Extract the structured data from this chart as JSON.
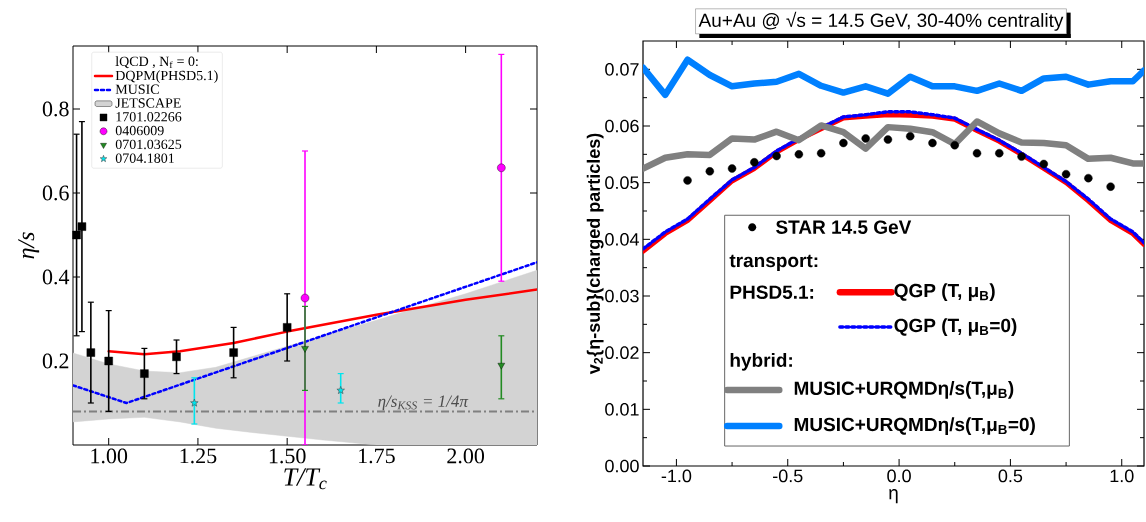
{
  "chart_data": [
    {
      "type": "line",
      "xlabel": "T/T$_{c}$",
      "ylabel": "η/s",
      "legend_title": "lQCD , N$_{f}$ = 0:",
      "legend": "top left",
      "xlim": [
        0.9,
        2.2
      ],
      "xticks": [
        {
          "value": 1.0,
          "label": "1.00"
        },
        1.25,
        {
          "value": 1.5,
          "label": "1.50"
        },
        1.75,
        {
          "value": 2.0,
          "label": "2.00"
        }
      ],
      "ylim": [
        0,
        0.95
      ],
      "yticks": [
        0.2,
        0.4,
        0.6,
        0.8
      ],
      "ref_lines": [
        {
          "axis": "y",
          "value": 0.0796,
          "color": "#808080"
        }
      ],
      "annotations": [
        {
          "text": "η/s$_{KSS}$ = 1/4π",
          "x": 1.88,
          "y": 0.0796
        }
      ],
      "series": [
        {
          "name": "DQPM(PHSD5.1)",
          "color": "#ff0000",
          "x": [
            1.0,
            1.1,
            1.2,
            1.35,
            1.5,
            1.75,
            2.0,
            2.2
          ],
          "values": [
            0.223,
            0.216,
            0.223,
            0.243,
            0.27,
            0.31,
            0.346,
            0.37
          ]
        },
        {
          "name": "MUSIC",
          "color": "#0000ff",
          "line_style": "dashed",
          "x": [
            0.9,
            1.05,
            1.5,
            2.2
          ],
          "values": [
            0.142,
            0.1,
            0.231,
            0.435
          ]
        },
        {
          "name": "JETSCAPE",
          "type": "area",
          "color": "#d3d3d3",
          "x": [
            0.9,
            1.0,
            1.1,
            1.2,
            1.3,
            1.4,
            1.6,
            1.75,
            1.8,
            2.0,
            2.2
          ],
          "values": [
            null,
            null,
            null,
            null,
            null,
            null,
            null,
            null,
            null,
            null,
            null
          ],
          "lower": [
            0.055,
            0.062,
            0.066,
            0.055,
            0.04,
            0.03,
            0.012,
            0.0,
            0.0,
            0.0,
            0.0
          ],
          "upper": [
            0.219,
            0.193,
            0.176,
            0.172,
            0.185,
            0.21,
            0.26,
            0.297,
            0.31,
            0.36,
            0.416
          ]
        },
        {
          "name": "1701.02266",
          "type": "scatter",
          "marker": "square",
          "color": "#000000",
          "x": [
            0.91,
            0.925,
            0.95,
            1.0,
            1.1,
            1.19,
            1.35,
            1.5
          ],
          "values": [
            0.5,
            0.52,
            0.22,
            0.2,
            0.17,
            0.21,
            0.22,
            0.28
          ],
          "errors": [
            [
              0.26,
              0.74
            ],
            [
              0.27,
              0.77
            ],
            [
              0.1,
              0.34
            ],
            [
              0.08,
              0.32
            ],
            [
              0.11,
              0.23
            ],
            [
              0.17,
              0.25
            ],
            [
              0.16,
              0.28
            ],
            [
              0.2,
              0.36
            ]
          ]
        },
        {
          "name": "0406009",
          "type": "scatter",
          "marker": "circle",
          "color": "#ff00ff",
          "x": [
            1.55,
            2.1
          ],
          "values": [
            0.35,
            0.66
          ],
          "errors": [
            [
              0.0,
              0.7
            ],
            [
              0.39,
              0.93
            ]
          ]
        },
        {
          "name": "0701.03625",
          "type": "scatter",
          "marker": "triangle",
          "color": "#228b22",
          "x": [
            1.55,
            2.1
          ],
          "values": [
            0.23,
            0.19
          ],
          "errors": [
            [
              0.13,
              0.33
            ],
            [
              0.11,
              0.26
            ]
          ]
        },
        {
          "name": "0704.1801",
          "type": "scatter",
          "marker": "star",
          "color": "#00e5ee",
          "x": [
            1.24,
            1.65
          ],
          "values": [
            0.1,
            0.13
          ],
          "errors": [
            [
              0.05,
              0.16
            ],
            [
              0.1,
              0.17
            ]
          ]
        }
      ]
    },
    {
      "type": "line",
      "title": "Au+Au @ √s = 14.5 GeV, 30-40% centrality",
      "xlabel": "η",
      "ylabel": "v$_{2}${η-sub}(charged particles)",
      "legend": "bottom",
      "xlim": [
        -1.15,
        1.1
      ],
      "xticks": [
        {
          "value": -1.0,
          "label": "-1.0"
        },
        -0.5,
        {
          "value": 0,
          "label": "0.0"
        },
        0.5,
        {
          "value": 1.0,
          "label": "1.0"
        }
      ],
      "ylim": [
        0,
        0.075
      ],
      "yticks": [
        {
          "value": 0,
          "label": "0.00"
        },
        0.01,
        0.02,
        0.03,
        0.04,
        0.05,
        0.06,
        0.07
      ],
      "annotations": [
        "transport:",
        "PHSD5.1:",
        "hybrid:"
      ],
      "series": [
        {
          "name": "STAR 14.5 GeV",
          "type": "scatter",
          "marker": "circle",
          "color": "#000000",
          "x": [
            -0.95,
            -0.85,
            -0.75,
            -0.65,
            -0.55,
            -0.45,
            -0.35,
            -0.25,
            -0.15,
            -0.05,
            0.05,
            0.15,
            0.25,
            0.35,
            0.45,
            0.55,
            0.65,
            0.75,
            0.85,
            0.95
          ],
          "values": [
            0.0504,
            0.052,
            0.0525,
            0.0536,
            0.0547,
            0.055,
            0.0552,
            0.057,
            0.0578,
            0.0576,
            0.0582,
            0.057,
            0.0566,
            0.0552,
            0.0552,
            0.0546,
            0.0533,
            0.0515,
            0.0508,
            0.0493
          ]
        },
        {
          "name": "QGP (T, μ$_{B}$)",
          "color": "#ff0000",
          "x": [
            -1.15,
            -1.05,
            -0.95,
            -0.85,
            -0.75,
            -0.65,
            -0.55,
            -0.45,
            -0.35,
            -0.25,
            -0.15,
            -0.05,
            0.05,
            0.15,
            0.25,
            0.35,
            0.45,
            0.55,
            0.65,
            0.75,
            0.85,
            0.95,
            1.05,
            1.1
          ],
          "values": [
            0.0379,
            0.041,
            0.0433,
            0.0468,
            0.0503,
            0.0525,
            0.0554,
            0.0576,
            0.0595,
            0.0614,
            0.0617,
            0.062,
            0.0619,
            0.0617,
            0.0612,
            0.0592,
            0.0573,
            0.055,
            0.0525,
            0.05,
            0.0468,
            0.0433,
            0.041,
            0.0391
          ]
        },
        {
          "name": "QGP (T, μ$_{B}$=0)",
          "color": "#0000ff",
          "line_style": "dashed",
          "x": [
            -1.15,
            -1.05,
            -0.95,
            -0.85,
            -0.75,
            -0.65,
            -0.55,
            -0.45,
            -0.35,
            -0.25,
            -0.15,
            -0.05,
            0.05,
            0.15,
            0.25,
            0.35,
            0.45,
            0.55,
            0.65,
            0.75,
            0.85,
            0.95,
            1.05,
            1.1
          ],
          "values": [
            0.0383,
            0.0413,
            0.0436,
            0.0471,
            0.0505,
            0.0527,
            0.0556,
            0.0578,
            0.0597,
            0.0616,
            0.062,
            0.0625,
            0.0625,
            0.062,
            0.0614,
            0.0594,
            0.0575,
            0.0552,
            0.0527,
            0.0502,
            0.0471,
            0.0436,
            0.0413,
            0.0394
          ]
        },
        {
          "name": "MUSIC+URQMDη/s(T,μ$_{B}$)",
          "color": "#808080",
          "x": [
            -1.15,
            -1.05,
            -0.95,
            -0.85,
            -0.75,
            -0.65,
            -0.55,
            -0.45,
            -0.35,
            -0.25,
            -0.15,
            -0.05,
            0.05,
            0.15,
            0.25,
            0.35,
            0.45,
            0.55,
            0.65,
            0.75,
            0.85,
            0.95,
            1.05,
            1.1
          ],
          "values": [
            0.0525,
            0.0544,
            0.055,
            0.0549,
            0.0578,
            0.0576,
            0.059,
            0.0575,
            0.0601,
            0.0589,
            0.056,
            0.0598,
            0.0595,
            0.0589,
            0.0568,
            0.0608,
            0.0587,
            0.0571,
            0.057,
            0.0566,
            0.0542,
            0.0544,
            0.0534,
            0.0534
          ]
        },
        {
          "name": "MUSIC+URQMDη/s(T,μ$_{B}$=0)",
          "color": "#0080ff",
          "x": [
            -1.15,
            -1.05,
            -0.95,
            -0.85,
            -0.75,
            -0.65,
            -0.55,
            -0.45,
            -0.35,
            -0.25,
            -0.15,
            -0.05,
            0.05,
            0.15,
            0.25,
            0.35,
            0.45,
            0.55,
            0.65,
            0.75,
            0.85,
            0.95,
            1.05,
            1.1
          ],
          "values": [
            0.0703,
            0.0655,
            0.0717,
            0.069,
            0.067,
            0.0675,
            0.0678,
            0.0692,
            0.0671,
            0.0659,
            0.067,
            0.0657,
            0.0687,
            0.067,
            0.067,
            0.0662,
            0.0675,
            0.0662,
            0.0684,
            0.0687,
            0.0673,
            0.0679,
            0.0679,
            0.0698
          ]
        }
      ]
    }
  ]
}
